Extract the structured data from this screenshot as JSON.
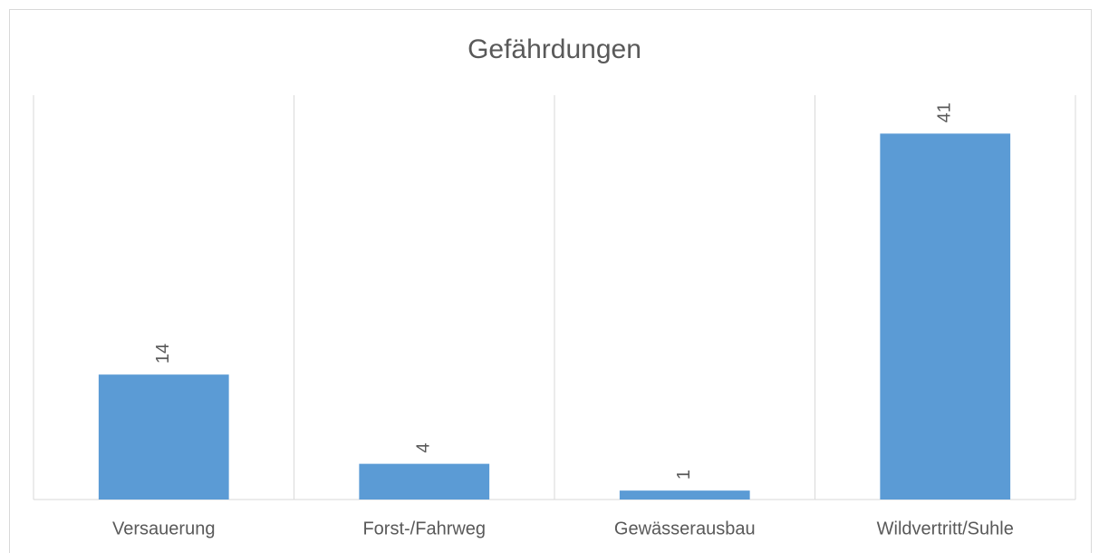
{
  "chart_data": {
    "type": "bar",
    "title": "Gefährdungen",
    "categories": [
      "Versauerung",
      "Forst-/Fahrweg",
      "Gewässerausbau",
      "Wildvertritt/Suhle"
    ],
    "values": [
      14,
      4,
      1,
      41
    ],
    "color": "#5b9bd5",
    "ylim": [
      0,
      45
    ],
    "grid": false
  }
}
